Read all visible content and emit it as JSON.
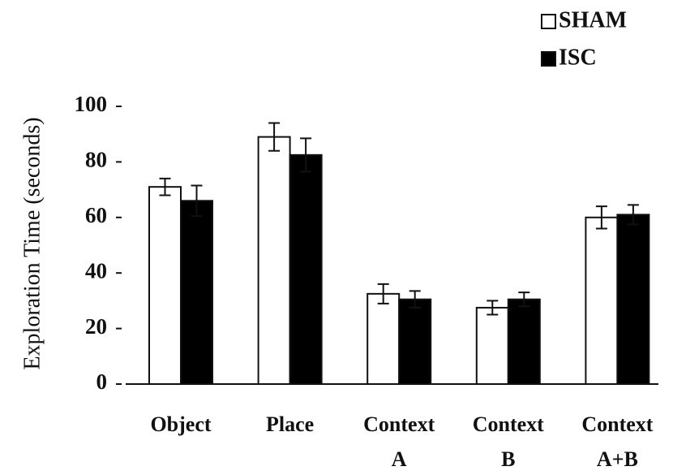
{
  "chart_data": {
    "type": "bar",
    "ylabel": "Exploration Time (seconds)",
    "categories": [
      "Object",
      "Place",
      "Context A",
      "Context B",
      "Context A+B"
    ],
    "series": [
      {
        "name": "SHAM",
        "color": "#ffffff",
        "values": [
          71,
          89,
          32.5,
          27.5,
          60
        ],
        "errors": [
          3,
          5,
          3.5,
          2.5,
          4
        ]
      },
      {
        "name": "ISC",
        "color": "#000000",
        "values": [
          66,
          82.5,
          30.5,
          30.5,
          61
        ],
        "errors": [
          5.5,
          6,
          3,
          2.5,
          3.5
        ]
      }
    ],
    "ylim": [
      0,
      100
    ],
    "yticks": [
      0,
      20,
      40,
      60,
      80,
      100
    ],
    "legend": "top-right"
  }
}
